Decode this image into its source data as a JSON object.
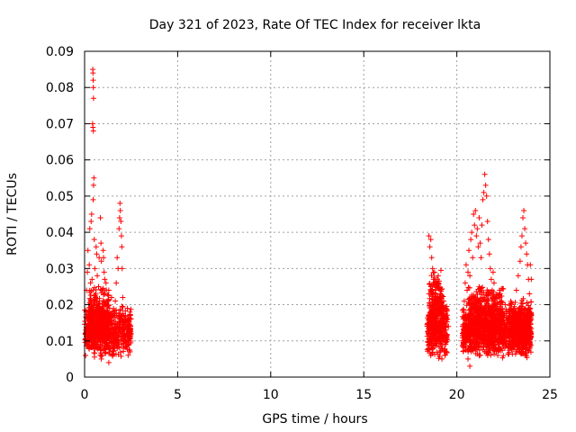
{
  "chart_data": {
    "type": "scatter",
    "title": "Day 321 of 2023, Rate Of TEC Index for receiver lkta",
    "xlabel": "GPS time / hours",
    "ylabel": "ROTI / TECUs",
    "xlim": [
      0,
      25
    ],
    "ylim": [
      0,
      0.09
    ],
    "xticks": [
      0,
      5,
      10,
      15,
      20,
      25
    ],
    "xtick_labels": [
      "0",
      "5",
      "10",
      "15",
      "20",
      "25"
    ],
    "yticks": [
      0,
      0.01,
      0.02,
      0.03,
      0.04,
      0.05,
      0.06,
      0.07,
      0.08,
      0.09
    ],
    "ytick_labels": [
      "0",
      "0.01",
      "0.02",
      "0.03",
      "0.04",
      "0.05",
      "0.06",
      "0.07",
      "0.08",
      "0.09"
    ],
    "grid": true,
    "marker": "+",
    "marker_color": "#ff0000",
    "series": [
      {
        "points": [
          [
            0.05,
            0.012
          ],
          [
            0.08,
            0.018
          ],
          [
            0.1,
            0.024
          ],
          [
            0.12,
            0.009
          ],
          [
            0.15,
            0.029
          ],
          [
            0.18,
            0.035
          ],
          [
            0.2,
            0.014
          ],
          [
            0.22,
            0.02
          ],
          [
            0.25,
            0.031
          ],
          [
            0.28,
            0.041
          ],
          [
            0.3,
            0.011
          ],
          [
            0.32,
            0.026
          ],
          [
            0.35,
            0.043
          ],
          [
            0.38,
            0.045
          ],
          [
            0.4,
            0.027
          ],
          [
            0.42,
            0.016
          ],
          [
            0.44,
            0.085
          ],
          [
            0.45,
            0.084
          ],
          [
            0.46,
            0.082
          ],
          [
            0.47,
            0.08
          ],
          [
            0.48,
            0.077
          ],
          [
            0.43,
            0.07
          ],
          [
            0.45,
            0.069
          ],
          [
            0.47,
            0.068
          ],
          [
            0.5,
            0.055
          ],
          [
            0.48,
            0.053
          ],
          [
            0.46,
            0.049
          ],
          [
            0.52,
            0.038
          ],
          [
            0.55,
            0.03
          ],
          [
            0.58,
            0.022
          ],
          [
            0.6,
            0.013
          ],
          [
            0.62,
            0.036
          ],
          [
            0.65,
            0.034
          ],
          [
            0.68,
            0.028
          ],
          [
            0.7,
            0.019
          ],
          [
            0.72,
            0.008
          ],
          [
            0.75,
            0.025
          ],
          [
            0.78,
            0.033
          ],
          [
            0.8,
            0.021
          ],
          [
            0.82,
            0.015
          ],
          [
            0.85,
            0.044
          ],
          [
            0.88,
            0.037
          ],
          [
            0.9,
            0.032
          ],
          [
            0.92,
            0.024
          ],
          [
            0.95,
            0.017
          ],
          [
            0.98,
            0.011
          ],
          [
            1.0,
            0.035
          ],
          [
            1.02,
            0.033
          ],
          [
            1.05,
            0.029
          ],
          [
            1.08,
            0.027
          ],
          [
            1.1,
            0.023
          ],
          [
            1.12,
            0.02
          ],
          [
            1.15,
            0.026
          ],
          [
            1.18,
            0.018
          ],
          [
            1.2,
            0.013
          ],
          [
            1.22,
            0.021
          ],
          [
            1.25,
            0.016
          ],
          [
            1.28,
            0.012
          ],
          [
            1.3,
            0.024
          ],
          [
            1.35,
            0.019
          ],
          [
            1.4,
            0.015
          ],
          [
            1.45,
            0.022
          ],
          [
            1.5,
            0.018
          ],
          [
            1.55,
            0.012
          ],
          [
            1.6,
            0.017
          ],
          [
            1.65,
            0.021
          ],
          [
            1.7,
            0.026
          ],
          [
            1.75,
            0.033
          ],
          [
            1.8,
            0.03
          ],
          [
            1.85,
            0.041
          ],
          [
            1.88,
            0.044
          ],
          [
            1.9,
            0.048
          ],
          [
            1.92,
            0.046
          ],
          [
            1.95,
            0.043
          ],
          [
            1.98,
            0.039
          ],
          [
            2.0,
            0.036
          ],
          [
            2.02,
            0.03
          ],
          [
            2.05,
            0.022
          ],
          [
            2.1,
            0.017
          ],
          [
            2.15,
            0.013
          ],
          [
            2.2,
            0.016
          ],
          [
            2.25,
            0.012
          ],
          [
            2.3,
            0.019
          ],
          [
            2.35,
            0.014
          ],
          [
            2.4,
            0.011
          ],
          [
            2.45,
            0.016
          ],
          [
            0.9,
            0.005
          ],
          [
            1.3,
            0.004
          ],
          [
            18.5,
            0.039
          ],
          [
            18.55,
            0.036
          ],
          [
            18.6,
            0.038
          ],
          [
            18.65,
            0.033
          ],
          [
            18.7,
            0.03
          ],
          [
            18.75,
            0.027
          ],
          [
            18.8,
            0.029
          ],
          [
            18.85,
            0.024
          ],
          [
            18.9,
            0.026
          ],
          [
            18.95,
            0.022
          ],
          [
            19.0,
            0.028
          ],
          [
            19.05,
            0.019
          ],
          [
            19.1,
            0.023
          ],
          [
            19.15,
            0.017
          ],
          [
            19.2,
            0.021
          ],
          [
            19.25,
            0.015
          ],
          [
            19.3,
            0.018
          ],
          [
            19.35,
            0.013
          ],
          [
            19.4,
            0.019
          ],
          [
            19.45,
            0.011
          ],
          [
            19.5,
            0.016
          ],
          [
            19.55,
            0.014
          ],
          [
            18.6,
            0.006
          ],
          [
            19.2,
            0.005
          ],
          [
            20.4,
            0.021
          ],
          [
            20.45,
            0.026
          ],
          [
            20.5,
            0.031
          ],
          [
            20.55,
            0.024
          ],
          [
            20.6,
            0.029
          ],
          [
            20.65,
            0.035
          ],
          [
            20.7,
            0.028
          ],
          [
            20.75,
            0.038
          ],
          [
            20.8,
            0.04
          ],
          [
            20.85,
            0.033
          ],
          [
            20.9,
            0.045
          ],
          [
            20.95,
            0.042
          ],
          [
            21.0,
            0.046
          ],
          [
            21.05,
            0.039
          ],
          [
            21.1,
            0.041
          ],
          [
            21.15,
            0.036
          ],
          [
            21.2,
            0.044
          ],
          [
            21.25,
            0.037
          ],
          [
            21.3,
            0.033
          ],
          [
            21.35,
            0.042
          ],
          [
            21.4,
            0.049
          ],
          [
            21.45,
            0.051
          ],
          [
            21.5,
            0.056
          ],
          [
            21.55,
            0.053
          ],
          [
            21.6,
            0.05
          ],
          [
            21.65,
            0.043
          ],
          [
            21.7,
            0.038
          ],
          [
            21.75,
            0.034
          ],
          [
            21.8,
            0.03
          ],
          [
            21.85,
            0.027
          ],
          [
            21.9,
            0.024
          ],
          [
            21.95,
            0.029
          ],
          [
            22.0,
            0.026
          ],
          [
            22.1,
            0.022
          ],
          [
            22.2,
            0.019
          ],
          [
            22.3,
            0.024
          ],
          [
            22.4,
            0.021
          ],
          [
            22.5,
            0.017
          ],
          [
            22.6,
            0.02
          ],
          [
            22.7,
            0.015
          ],
          [
            22.8,
            0.018
          ],
          [
            22.9,
            0.013
          ],
          [
            23.0,
            0.016
          ],
          [
            23.1,
            0.019
          ],
          [
            23.2,
            0.024
          ],
          [
            23.3,
            0.028
          ],
          [
            23.4,
            0.032
          ],
          [
            23.45,
            0.036
          ],
          [
            23.5,
            0.039
          ],
          [
            23.55,
            0.044
          ],
          [
            23.6,
            0.046
          ],
          [
            23.65,
            0.041
          ],
          [
            23.7,
            0.037
          ],
          [
            23.75,
            0.034
          ],
          [
            23.8,
            0.031
          ],
          [
            23.85,
            0.027
          ],
          [
            23.9,
            0.023
          ],
          [
            23.95,
            0.019
          ],
          [
            24.0,
            0.017
          ],
          [
            24.0,
            0.027
          ],
          [
            23.95,
            0.031
          ],
          [
            20.6,
            0.005
          ],
          [
            20.7,
            0.003
          ],
          [
            21.5,
            0.007
          ],
          [
            22.2,
            0.006
          ],
          [
            23.2,
            0.007
          ],
          [
            23.7,
            0.006
          ]
        ],
        "bands": [
          [
            0.0,
            2.5,
            0.005,
            0.02
          ],
          [
            0.2,
            1.3,
            0.008,
            0.026
          ],
          [
            18.4,
            19.5,
            0.005,
            0.021
          ],
          [
            18.5,
            19.3,
            0.008,
            0.03
          ],
          [
            20.3,
            24.0,
            0.005,
            0.02
          ],
          [
            20.6,
            22.5,
            0.008,
            0.026
          ],
          [
            22.8,
            24.0,
            0.006,
            0.022
          ]
        ]
      }
    ]
  }
}
